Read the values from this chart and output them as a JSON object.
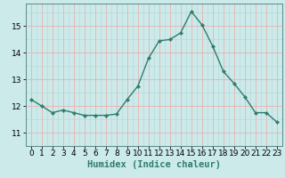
{
  "x": [
    0,
    1,
    2,
    3,
    4,
    5,
    6,
    7,
    8,
    9,
    10,
    11,
    12,
    13,
    14,
    15,
    16,
    17,
    18,
    19,
    20,
    21,
    22,
    23
  ],
  "y": [
    12.25,
    12.0,
    11.75,
    11.85,
    11.75,
    11.65,
    11.65,
    11.65,
    11.7,
    12.25,
    12.75,
    13.8,
    14.45,
    14.5,
    14.75,
    15.55,
    15.05,
    14.25,
    13.3,
    12.85,
    12.35,
    11.75,
    11.75,
    11.4
  ],
  "line_color": "#2e7d6e",
  "marker": "D",
  "marker_size": 2.2,
  "bg_color": "#cceaea",
  "grid_color_major": "#e8b0b0",
  "grid_color_minor": "#b8d8d8",
  "xlabel": "Humidex (Indice chaleur)",
  "xlabel_fontsize": 7.5,
  "ylabel_ticks": [
    11,
    12,
    13,
    14,
    15
  ],
  "xlim": [
    -0.5,
    23.5
  ],
  "ylim": [
    10.7,
    15.85
  ],
  "xtick_labels": [
    "0",
    "1",
    "2",
    "3",
    "4",
    "5",
    "6",
    "7",
    "8",
    "9",
    "10",
    "11",
    "12",
    "13",
    "14",
    "15",
    "16",
    "17",
    "18",
    "19",
    "20",
    "21",
    "22",
    "23"
  ],
  "tick_fontsize": 6.5,
  "line_width": 1.0
}
